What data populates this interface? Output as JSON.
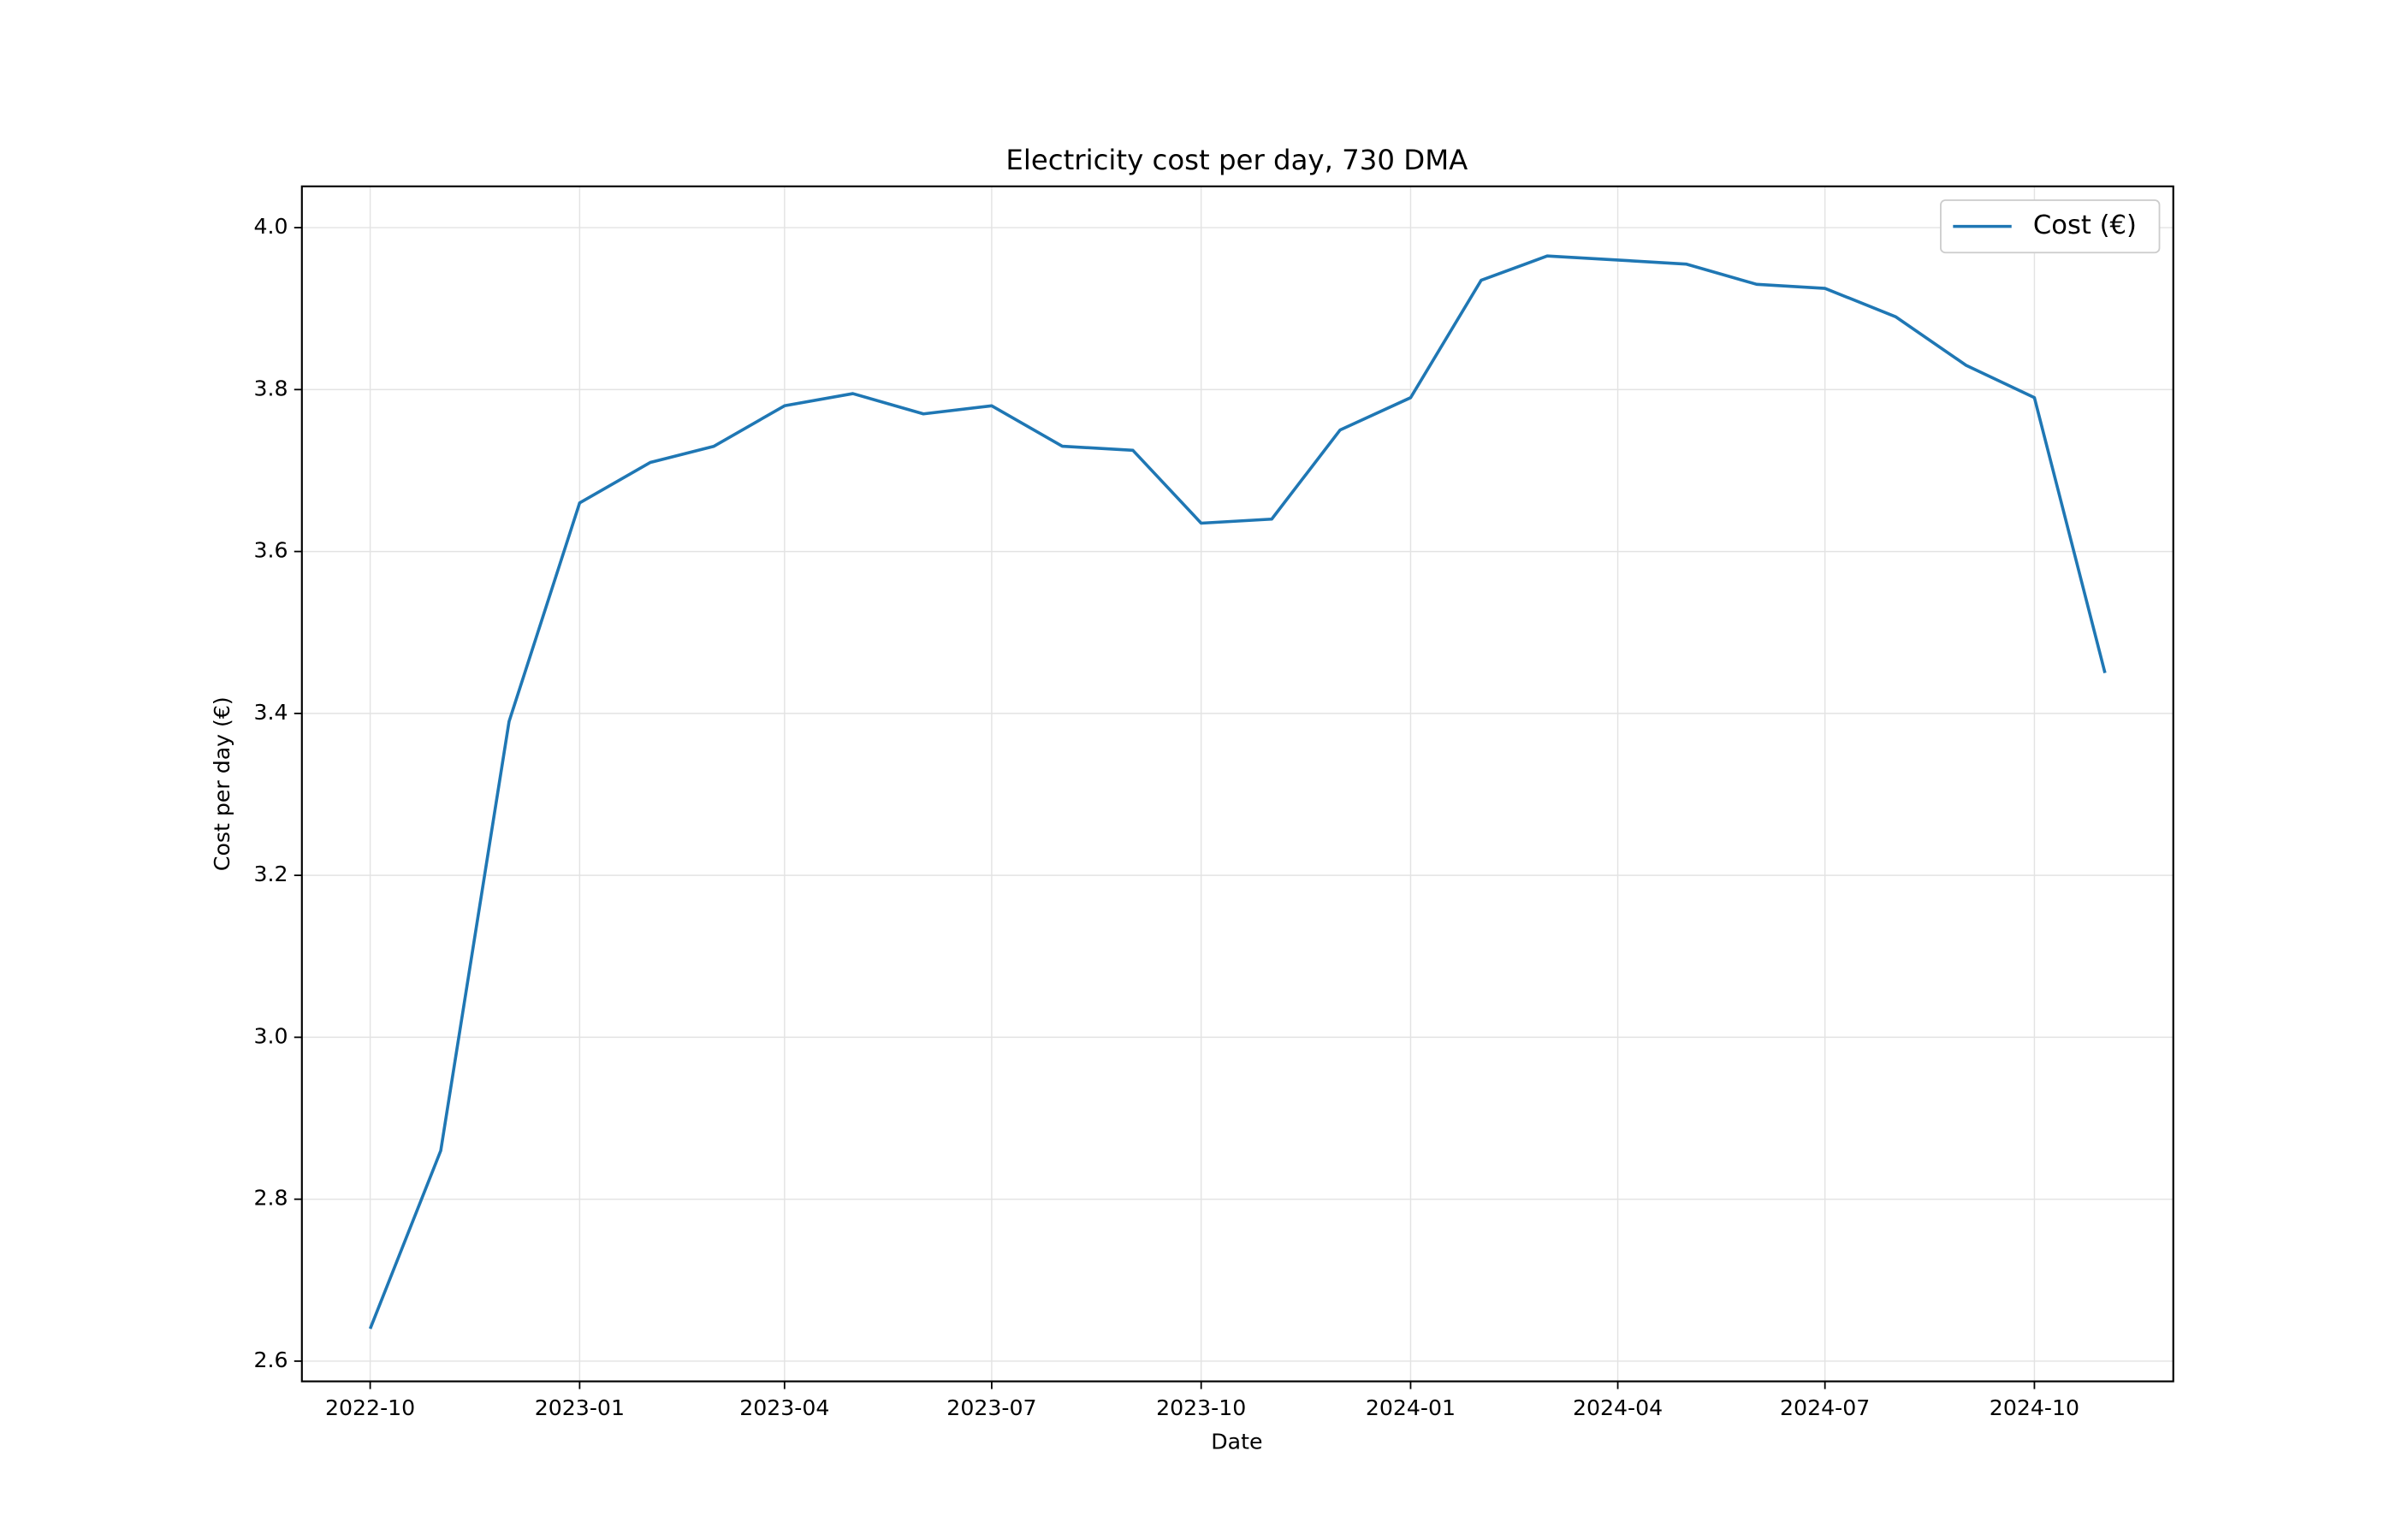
{
  "chart_data": {
    "type": "line",
    "title": "Electricity cost per day, 730 DMA",
    "xlabel": "Date",
    "ylabel": "Cost per day (€)",
    "x": [
      "2022-10",
      "2022-11",
      "2022-12",
      "2023-01",
      "2023-02",
      "2023-03",
      "2023-04",
      "2023-05",
      "2023-06",
      "2023-07",
      "2023-08",
      "2023-09",
      "2023-10",
      "2023-11",
      "2023-12",
      "2024-01",
      "2024-02",
      "2024-03",
      "2024-04",
      "2024-05",
      "2024-06",
      "2024-07",
      "2024-08",
      "2024-09",
      "2024-10",
      "2024-11"
    ],
    "series": [
      {
        "name": "Cost (€)",
        "color": "#1f77b4",
        "values": [
          2.64,
          2.86,
          3.39,
          3.66,
          3.71,
          3.73,
          3.78,
          3.795,
          3.77,
          3.78,
          3.73,
          3.725,
          3.635,
          3.64,
          3.75,
          3.79,
          3.935,
          3.965,
          3.96,
          3.955,
          3.93,
          3.925,
          3.89,
          3.83,
          3.79,
          3.45
        ]
      }
    ],
    "xlim": [
      "2022-09",
      "2024-12"
    ],
    "xticks": [
      "2022-10",
      "2023-01",
      "2023-04",
      "2023-07",
      "2023-10",
      "2024-01",
      "2024-04",
      "2024-07",
      "2024-10"
    ],
    "ylim": [
      2.575,
      4.051
    ],
    "yticks": [
      2.6,
      2.8,
      {
        "value": 3,
        "label": "3.0"
      },
      3.2,
      3.4,
      3.6,
      3.8,
      {
        "value": 4,
        "label": "4.0"
      }
    ],
    "grid": true,
    "legend": "upper right"
  }
}
